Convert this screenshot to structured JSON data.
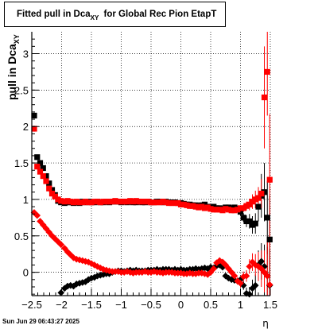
{
  "chart_data": {
    "type": "scatter",
    "title": {
      "main": "Fitted pull in Dca",
      "subscript": "XY",
      "rest": "for Global Rec Pion EtapT"
    },
    "xlabel": "η",
    "ylabel": {
      "main": "pull in Dca",
      "subscript": "XY"
    },
    "xlim": [
      -2.5,
      1.5
    ],
    "ylim": [
      -0.32,
      3.3
    ],
    "xticks": [
      -2.5,
      -2,
      -1.5,
      -1,
      -0.5,
      0,
      0.5,
      1,
      1.5
    ],
    "xtick_labels": [
      "−2.5",
      "−2",
      "−1.5",
      "−1",
      "−0.5",
      "0",
      "0.5",
      "1",
      "1.5"
    ],
    "yticks": [
      0,
      0.5,
      1,
      1.5,
      2,
      2.5,
      3
    ],
    "ytick_labels": [
      "0",
      "0.5",
      "1",
      "1.5",
      "2",
      "2.5",
      "3"
    ],
    "grid": true,
    "series": [
      {
        "marker": "square",
        "color": "#000000",
        "x": [
          -2.46,
          -2.41,
          -2.36,
          -2.31,
          -2.26,
          -2.21,
          -2.16,
          -2.11,
          -2.06,
          -2.01,
          -1.95,
          -1.9,
          -1.85,
          -1.8,
          -1.75,
          -1.7,
          -1.65,
          -1.6,
          -1.55,
          -1.5,
          -1.45,
          -1.4,
          -1.35,
          -1.3,
          -1.25,
          -1.2,
          -1.15,
          -1.1,
          -1.05,
          -1.0,
          -0.95,
          -0.9,
          -0.85,
          -0.8,
          -0.75,
          -0.7,
          -0.65,
          -0.6,
          -0.55,
          -0.5,
          -0.45,
          -0.4,
          -0.35,
          -0.3,
          -0.25,
          -0.2,
          -0.15,
          -0.1,
          -0.05,
          0.0,
          0.05,
          0.1,
          0.15,
          0.2,
          0.25,
          0.3,
          0.35,
          0.4,
          0.45,
          0.5,
          0.55,
          0.6,
          0.65,
          0.7,
          0.75,
          0.8,
          0.85,
          0.9,
          0.95,
          1.0,
          1.05,
          1.1,
          1.15,
          1.2,
          1.25,
          1.3,
          1.35,
          1.4,
          1.45,
          1.49
        ],
        "y": [
          2.15,
          1.58,
          1.5,
          1.43,
          1.32,
          1.22,
          1.13,
          1.06,
          0.98,
          0.96,
          0.95,
          0.96,
          0.96,
          0.95,
          0.96,
          0.95,
          0.97,
          0.96,
          0.97,
          0.96,
          0.96,
          0.97,
          0.96,
          0.96,
          0.97,
          0.96,
          0.97,
          0.97,
          0.97,
          0.96,
          0.97,
          0.96,
          0.97,
          0.96,
          0.96,
          0.97,
          0.96,
          0.96,
          0.97,
          0.96,
          0.96,
          0.97,
          0.97,
          0.96,
          0.97,
          0.96,
          0.96,
          0.96,
          0.95,
          0.95,
          0.94,
          0.93,
          0.93,
          0.92,
          0.92,
          0.91,
          0.92,
          0.93,
          0.9,
          0.89,
          0.9,
          0.88,
          0.88,
          0.87,
          0.89,
          0.89,
          0.88,
          0.89,
          0.87,
          0.83,
          0.75,
          0.7,
          0.7,
          0.65,
          0.67,
          0.9,
          1.05,
          1.1,
          0.75,
          0.45
        ],
        "yerr": [
          0.04,
          0.03,
          0.02,
          0.02,
          0.02,
          0.02,
          0.02,
          0.02,
          0.02,
          0.02,
          0.02,
          0.02,
          0.02,
          0.02,
          0.02,
          0.02,
          0.02,
          0.02,
          0.02,
          0.02,
          0.02,
          0.02,
          0.02,
          0.02,
          0.02,
          0.02,
          0.02,
          0.02,
          0.02,
          0.02,
          0.02,
          0.02,
          0.02,
          0.02,
          0.02,
          0.02,
          0.02,
          0.02,
          0.02,
          0.02,
          0.02,
          0.02,
          0.02,
          0.02,
          0.02,
          0.02,
          0.02,
          0.02,
          0.02,
          0.02,
          0.02,
          0.02,
          0.02,
          0.02,
          0.02,
          0.02,
          0.02,
          0.02,
          0.02,
          0.02,
          0.02,
          0.02,
          0.02,
          0.02,
          0.02,
          0.02,
          0.03,
          0.03,
          0.04,
          0.05,
          0.06,
          0.08,
          0.1,
          0.12,
          0.14,
          0.2,
          0.3,
          0.4,
          0.5,
          0.6
        ]
      },
      {
        "marker": "diamond",
        "color": "#000000",
        "x": [
          -2.01,
          -1.95,
          -1.9,
          -1.85,
          -1.8,
          -1.75,
          -1.7,
          -1.65,
          -1.6,
          -1.55,
          -1.5,
          -1.45,
          -1.4,
          -1.35,
          -1.3,
          -1.25,
          -1.2,
          -1.15,
          -1.1,
          -1.05,
          -1.0,
          -0.95,
          -0.9,
          -0.85,
          -0.8,
          -0.75,
          -0.7,
          -0.65,
          -0.6,
          -0.55,
          -0.5,
          -0.45,
          -0.4,
          -0.35,
          -0.3,
          -0.25,
          -0.2,
          -0.15,
          -0.1,
          -0.05,
          0.0,
          0.05,
          0.1,
          0.15,
          0.2,
          0.25,
          0.3,
          0.35,
          0.4,
          0.45,
          0.5,
          0.55,
          0.6,
          0.65,
          0.7,
          0.75,
          0.8,
          0.85,
          0.9,
          0.95,
          1.0,
          1.05,
          1.1,
          1.15,
          1.2,
          1.25,
          1.3,
          1.35,
          1.4,
          1.45,
          1.49
        ],
        "y": [
          -0.28,
          -0.22,
          -0.19,
          -0.18,
          -0.19,
          -0.16,
          -0.15,
          -0.14,
          -0.13,
          -0.1,
          -0.08,
          -0.07,
          -0.05,
          -0.04,
          -0.03,
          -0.02,
          -0.02,
          0.0,
          0.01,
          0.02,
          0.02,
          0.01,
          0.02,
          0.03,
          0.02,
          0.03,
          0.02,
          0.02,
          0.02,
          0.03,
          0.03,
          0.03,
          0.04,
          0.03,
          0.04,
          0.04,
          0.04,
          0.03,
          0.04,
          0.03,
          0.04,
          0.03,
          0.03,
          0.04,
          0.04,
          0.05,
          0.04,
          0.05,
          0.06,
          0.05,
          0.07,
          0.06,
          0.09,
          0.1,
          0.07,
          -0.05,
          -0.08,
          -0.1,
          -0.11,
          -0.12,
          -0.1,
          -0.18,
          -0.29,
          -0.3,
          -0.22,
          -0.18,
          0.1,
          0.15,
          0.08,
          -0.05,
          -0.18
        ],
        "yerr": [
          0.02,
          0.02,
          0.02,
          0.02,
          0.02,
          0.02,
          0.02,
          0.02,
          0.02,
          0.02,
          0.02,
          0.02,
          0.02,
          0.02,
          0.02,
          0.02,
          0.02,
          0.02,
          0.02,
          0.02,
          0.02,
          0.02,
          0.02,
          0.02,
          0.02,
          0.02,
          0.02,
          0.02,
          0.02,
          0.02,
          0.02,
          0.02,
          0.02,
          0.02,
          0.02,
          0.02,
          0.02,
          0.02,
          0.02,
          0.02,
          0.02,
          0.02,
          0.02,
          0.02,
          0.02,
          0.02,
          0.02,
          0.02,
          0.02,
          0.02,
          0.02,
          0.02,
          0.02,
          0.02,
          0.02,
          0.02,
          0.03,
          0.03,
          0.03,
          0.04,
          0.05,
          0.06,
          0.08,
          0.1,
          0.12,
          0.15,
          0.2,
          0.25,
          0.3,
          0.4,
          0.5
        ]
      },
      {
        "marker": "square",
        "color": "#ff0000",
        "x": [
          -2.46,
          -2.41,
          -2.36,
          -2.31,
          -2.26,
          -2.21,
          -2.16,
          -2.11,
          -2.06,
          -2.01,
          -1.95,
          -1.9,
          -1.85,
          -1.8,
          -1.75,
          -1.7,
          -1.65,
          -1.6,
          -1.55,
          -1.5,
          -1.45,
          -1.4,
          -1.35,
          -1.3,
          -1.25,
          -1.2,
          -1.15,
          -1.1,
          -1.05,
          -1.0,
          -0.95,
          -0.9,
          -0.85,
          -0.8,
          -0.75,
          -0.7,
          -0.65,
          -0.6,
          -0.55,
          -0.5,
          -0.45,
          -0.4,
          -0.35,
          -0.3,
          -0.25,
          -0.2,
          -0.15,
          -0.1,
          -0.05,
          0.0,
          0.05,
          0.1,
          0.15,
          0.2,
          0.25,
          0.3,
          0.35,
          0.4,
          0.45,
          0.5,
          0.55,
          0.6,
          0.65,
          0.7,
          0.75,
          0.8,
          0.85,
          0.9,
          0.95,
          1.0,
          1.05,
          1.1,
          1.15,
          1.2,
          1.25,
          1.3,
          1.35,
          1.4,
          1.45,
          1.49
        ],
        "y": [
          1.97,
          1.45,
          1.38,
          1.32,
          1.25,
          1.15,
          1.08,
          1.04,
          1.0,
          0.98,
          0.97,
          0.98,
          0.97,
          0.96,
          0.97,
          0.96,
          0.96,
          0.97,
          0.96,
          0.96,
          0.97,
          0.97,
          0.96,
          0.97,
          0.97,
          0.97,
          0.97,
          0.98,
          0.97,
          0.97,
          0.97,
          0.97,
          0.98,
          0.97,
          0.98,
          0.97,
          0.97,
          0.97,
          0.97,
          0.96,
          0.96,
          0.96,
          0.96,
          0.97,
          0.96,
          0.95,
          0.95,
          0.95,
          0.95,
          0.93,
          0.93,
          0.92,
          0.91,
          0.91,
          0.9,
          0.89,
          0.9,
          0.88,
          0.89,
          0.87,
          0.86,
          0.86,
          0.86,
          0.85,
          0.87,
          0.86,
          0.85,
          0.85,
          0.86,
          0.88,
          0.88,
          0.91,
          0.93,
          0.97,
          1.0,
          1.02,
          1.08,
          2.4,
          2.75,
          1.27
        ],
        "yerr": [
          0.04,
          0.03,
          0.02,
          0.02,
          0.02,
          0.02,
          0.02,
          0.02,
          0.02,
          0.02,
          0.02,
          0.02,
          0.02,
          0.02,
          0.02,
          0.02,
          0.02,
          0.02,
          0.02,
          0.02,
          0.02,
          0.02,
          0.02,
          0.02,
          0.02,
          0.02,
          0.02,
          0.02,
          0.02,
          0.02,
          0.02,
          0.02,
          0.02,
          0.02,
          0.02,
          0.02,
          0.02,
          0.02,
          0.02,
          0.02,
          0.02,
          0.02,
          0.02,
          0.02,
          0.02,
          0.02,
          0.02,
          0.02,
          0.02,
          0.02,
          0.02,
          0.02,
          0.02,
          0.02,
          0.02,
          0.02,
          0.02,
          0.02,
          0.02,
          0.02,
          0.02,
          0.02,
          0.02,
          0.02,
          0.02,
          0.02,
          0.03,
          0.03,
          0.03,
          0.04,
          0.05,
          0.06,
          0.08,
          0.1,
          0.12,
          0.15,
          0.2,
          0.7,
          0.6,
          0.9
        ]
      },
      {
        "marker": "diamond",
        "color": "#ff0000",
        "x": [
          -2.46,
          -2.41,
          -2.36,
          -2.31,
          -2.26,
          -2.21,
          -2.16,
          -2.11,
          -2.06,
          -2.01,
          -1.95,
          -1.9,
          -1.85,
          -1.8,
          -1.75,
          -1.7,
          -1.65,
          -1.6,
          -1.55,
          -1.5,
          -1.45,
          -1.4,
          -1.35,
          -1.3,
          -1.25,
          -1.2,
          -1.15,
          -1.1,
          -1.05,
          -1.0,
          -0.95,
          -0.9,
          -0.85,
          -0.8,
          -0.75,
          -0.7,
          -0.65,
          -0.6,
          -0.55,
          -0.5,
          -0.45,
          -0.4,
          -0.35,
          -0.3,
          -0.25,
          -0.2,
          -0.15,
          -0.1,
          -0.05,
          0.0,
          0.05,
          0.1,
          0.15,
          0.2,
          0.25,
          0.3,
          0.35,
          0.4,
          0.45,
          0.5,
          0.55,
          0.6,
          0.65,
          0.7,
          0.75,
          0.8,
          0.85,
          0.9,
          0.95,
          1.0,
          1.05,
          1.1,
          1.15,
          1.2,
          1.25,
          1.3,
          1.35,
          1.4,
          1.45,
          1.49
        ],
        "y": [
          0.82,
          0.78,
          0.7,
          0.65,
          0.6,
          0.55,
          0.5,
          0.46,
          0.42,
          0.38,
          0.33,
          0.28,
          0.24,
          0.2,
          0.18,
          0.17,
          0.16,
          0.15,
          0.14,
          0.12,
          0.1,
          0.08,
          0.06,
          0.04,
          0.03,
          0.02,
          0.01,
          0.01,
          0.01,
          0.0,
          0.0,
          0.01,
          0.0,
          -0.01,
          0.0,
          0.0,
          0.0,
          0.01,
          0.0,
          0.0,
          0.01,
          0.0,
          0.0,
          -0.01,
          0.0,
          0.0,
          0.0,
          -0.01,
          -0.01,
          -0.01,
          -0.02,
          -0.02,
          -0.01,
          -0.02,
          -0.02,
          -0.01,
          -0.01,
          -0.02,
          -0.03,
          0.0,
          0.05,
          0.13,
          0.16,
          0.14,
          0.1,
          0.05,
          0.0,
          -0.05,
          -0.12,
          -0.15,
          -0.06,
          -0.05,
          0.08,
          0.14,
          0.1,
          0.08,
          0.05,
          0.0,
          -0.05,
          -0.17
        ],
        "yerr": [
          0.03,
          0.03,
          0.02,
          0.02,
          0.02,
          0.02,
          0.02,
          0.02,
          0.02,
          0.02,
          0.02,
          0.02,
          0.02,
          0.02,
          0.02,
          0.02,
          0.02,
          0.02,
          0.02,
          0.02,
          0.02,
          0.02,
          0.02,
          0.02,
          0.02,
          0.02,
          0.02,
          0.02,
          0.02,
          0.02,
          0.02,
          0.02,
          0.02,
          0.02,
          0.02,
          0.02,
          0.02,
          0.02,
          0.02,
          0.02,
          0.02,
          0.02,
          0.02,
          0.02,
          0.02,
          0.02,
          0.02,
          0.02,
          0.02,
          0.02,
          0.02,
          0.02,
          0.02,
          0.02,
          0.02,
          0.02,
          0.02,
          0.02,
          0.02,
          0.02,
          0.02,
          0.02,
          0.02,
          0.02,
          0.02,
          0.03,
          0.03,
          0.04,
          0.05,
          0.06,
          0.07,
          0.08,
          0.1,
          0.12,
          0.15,
          0.2,
          0.25,
          0.3,
          0.5,
          0.6
        ]
      }
    ]
  },
  "timestamp": "Sun Jun 29 06:43:27 2025"
}
